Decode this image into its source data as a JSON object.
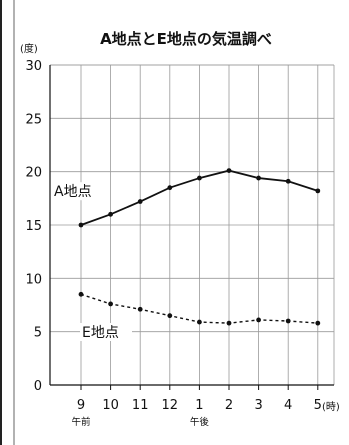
{
  "chart_data": {
    "type": "line",
    "title": "A地点とE地点の気温調べ",
    "ylabel": "(度)",
    "xlabel": "(時)",
    "ylim": [
      0,
      30
    ],
    "yticks": [
      "0",
      "5",
      "10",
      "15",
      "20",
      "25",
      "30"
    ],
    "categories": [
      "9",
      "10",
      "11",
      "12",
      "1",
      "2",
      "3",
      "4",
      "5"
    ],
    "period_labels": [
      {
        "label": "午前",
        "index": 0
      },
      {
        "label": "午後",
        "index": 4
      }
    ],
    "grid": true,
    "legend": "none",
    "series": [
      {
        "name": "A地点",
        "style": "solid",
        "values": [
          15.0,
          16.0,
          17.2,
          18.5,
          19.4,
          20.1,
          19.4,
          19.1,
          18.2
        ]
      },
      {
        "name": "E地点",
        "style": "dashed",
        "values": [
          8.5,
          7.6,
          7.1,
          6.5,
          5.9,
          5.8,
          6.1,
          6.0,
          5.8
        ]
      }
    ],
    "colors": {
      "line": "#111111",
      "grid": "#9a9a9a",
      "axis": "#111111"
    }
  }
}
